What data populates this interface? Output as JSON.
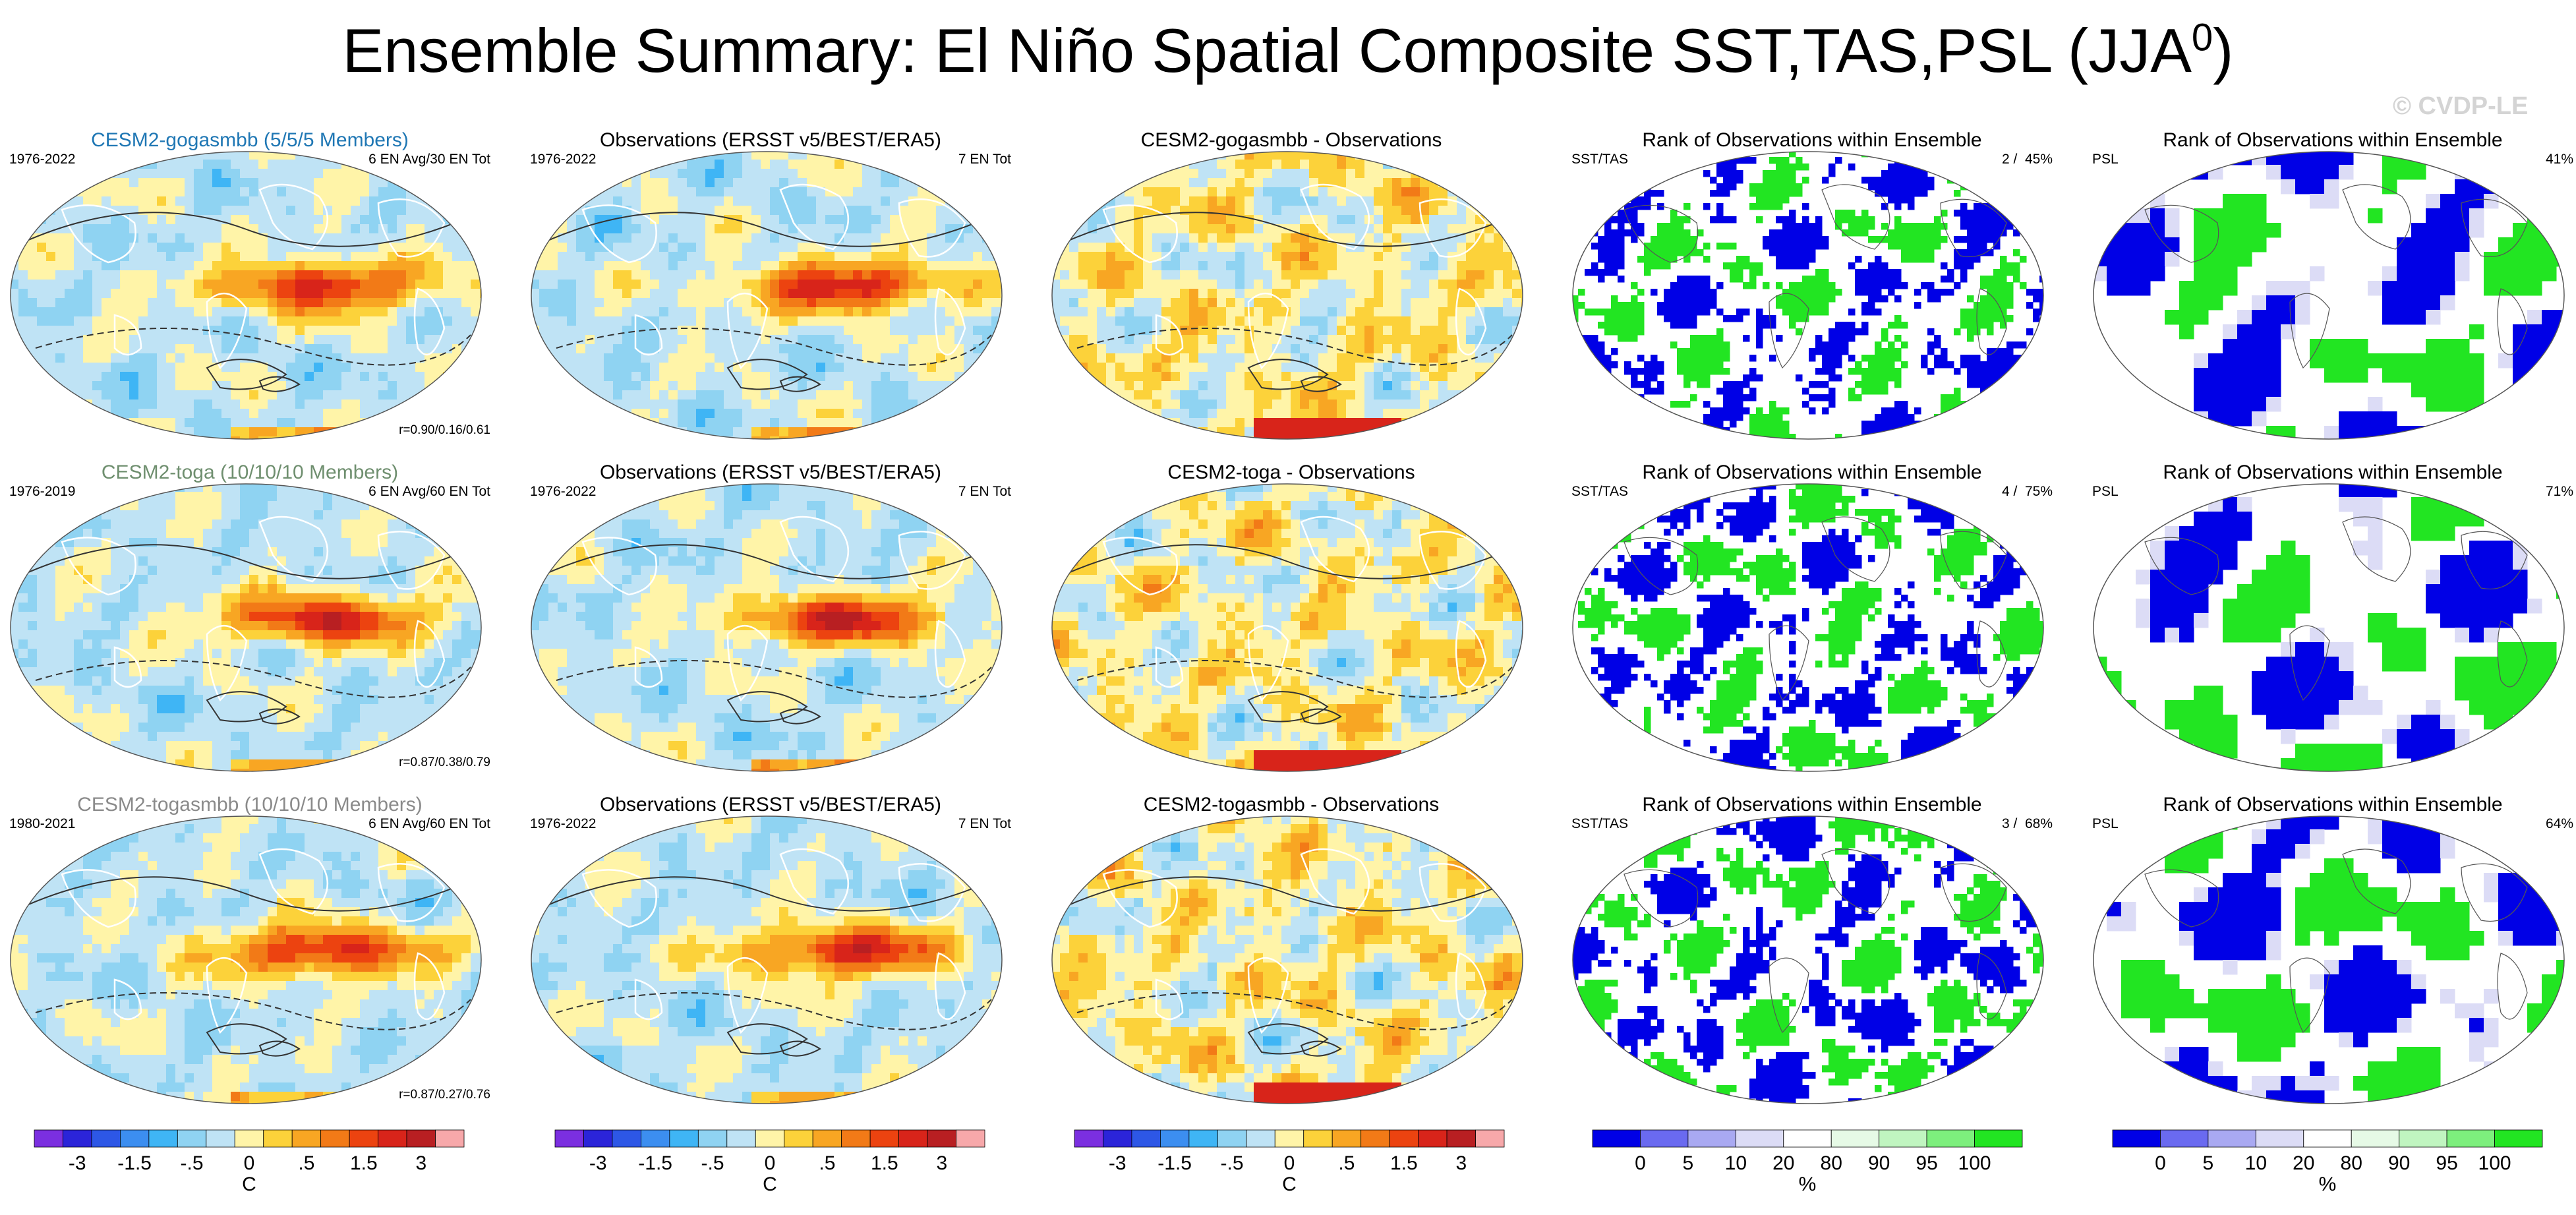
{
  "title": {
    "main": "Ensemble Summary: El Niño Spatial Composite SST,TAS,PSL (JJA",
    "sup": "0",
    "close": ")"
  },
  "watermark": "© CVDP-LE",
  "rows": [
    {
      "model": {
        "title": "CESM2-gogasmbb (5/5/5 Members)",
        "title_color": "#1f77b4",
        "years": "1976-2022",
        "info": "6 EN Avg/30 EN Tot",
        "corr": "r=0.90/0.16/0.61"
      },
      "obs": {
        "title": "Observations (ERSST v5/BEST/ERA5)",
        "years": "1976-2022",
        "info": "7 EN Tot"
      },
      "diff": {
        "title": "CESM2-gogasmbb - Observations"
      },
      "rank_sst": {
        "title": "Rank of Observations within Ensemble",
        "left": "SST/TAS",
        "right": "2 /  45%"
      },
      "rank_psl": {
        "title": "Rank of Observations within Ensemble",
        "left": "PSL",
        "right": "41%"
      }
    },
    {
      "model": {
        "title": "CESM2-toga (10/10/10 Members)",
        "title_color": "#6f8f6f",
        "years": "1976-2019",
        "info": "6 EN Avg/60 EN Tot",
        "corr": "r=0.87/0.38/0.79"
      },
      "obs": {
        "title": "Observations (ERSST v5/BEST/ERA5)",
        "years": "1976-2022",
        "info": "7 EN Tot"
      },
      "diff": {
        "title": "CESM2-toga - Observations"
      },
      "rank_sst": {
        "title": "Rank of Observations within Ensemble",
        "left": "SST/TAS",
        "right": "4 /  75%"
      },
      "rank_psl": {
        "title": "Rank of Observations within Ensemble",
        "left": "PSL",
        "right": "71%"
      }
    },
    {
      "model": {
        "title": "CESM2-togasmbb (10/10/10 Members)",
        "title_color": "#8a8a8a",
        "years": "1980-2021",
        "info": "6 EN Avg/60 EN Tot",
        "corr": "r=0.87/0.27/0.76"
      },
      "obs": {
        "title": "Observations (ERSST v5/BEST/ERA5)",
        "years": "1976-2022",
        "info": "7 EN Tot"
      },
      "diff": {
        "title": "CESM2-togasmbb - Observations"
      },
      "rank_sst": {
        "title": "Rank of Observations within Ensemble",
        "left": "SST/TAS",
        "right": "3 /  68%"
      },
      "rank_psl": {
        "title": "Rank of Observations within Ensemble",
        "left": "PSL",
        "right": "64%"
      }
    }
  ],
  "colorbars": {
    "temperature": {
      "colors": [
        "#7b2fe0",
        "#2b24d9",
        "#2d57e6",
        "#3c8ef0",
        "#3fb5f5",
        "#8fd3f2",
        "#bfe3f5",
        "#fff4a8",
        "#fcd23a",
        "#f8a623",
        "#f27a17",
        "#ec4310",
        "#d8241a",
        "#b81f22",
        "#f7a8aa"
      ],
      "tick_labels": [
        "-3",
        "-1.5",
        "-.5",
        "0",
        ".5",
        "1.5",
        "3"
      ],
      "tick_positions": [
        1.5,
        3.5,
        5.5,
        7.5,
        9.5,
        11.5,
        13.5
      ],
      "unit": "C"
    },
    "rank": {
      "colors": [
        "#0000e6",
        "#6a6af0",
        "#a9a9f2",
        "#dcdcf6",
        "#ffffff",
        "#e6fae6",
        "#c0f5c0",
        "#7def7d",
        "#22e522"
      ],
      "tick_labels": [
        "0",
        "5",
        "10",
        "20",
        "80",
        "90",
        "95",
        "100"
      ],
      "tick_positions": [
        1,
        2,
        3,
        4,
        5,
        6,
        7,
        8
      ],
      "unit": "%"
    }
  },
  "chart_data": [
    {
      "type": "heatmap",
      "description": "3x5 grid of global spatial composite maps (El Niño JJA) with colorbars",
      "variables": [
        "SST",
        "TAS",
        "PSL"
      ],
      "season": "JJA0",
      "colorbar_temperature_range": [
        -3,
        3
      ],
      "colorbar_rank_range": [
        0,
        100
      ]
    }
  ]
}
